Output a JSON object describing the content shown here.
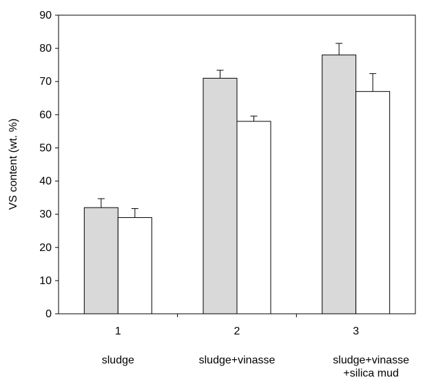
{
  "chart_data": {
    "type": "bar",
    "categories": [
      "1",
      "2",
      "3"
    ],
    "category_descriptions": [
      [
        "sludge"
      ],
      [
        "sludge+vinasse"
      ],
      [
        "sludge+vinasse",
        "+silica mud"
      ]
    ],
    "series": [
      {
        "fill": "#d9d9d9",
        "values": [
          32,
          71,
          78
        ],
        "error": [
          2.7,
          2.4,
          3.5
        ]
      },
      {
        "fill": "#ffffff",
        "values": [
          29,
          58,
          67
        ],
        "error": [
          2.7,
          1.6,
          5.4
        ]
      }
    ],
    "ylabel": "VS content (wt. %)",
    "ylim": [
      0,
      90
    ],
    "yticks": [
      0,
      10,
      20,
      30,
      40,
      50,
      60,
      70,
      80,
      90
    ],
    "grid": false,
    "legend": "none"
  }
}
